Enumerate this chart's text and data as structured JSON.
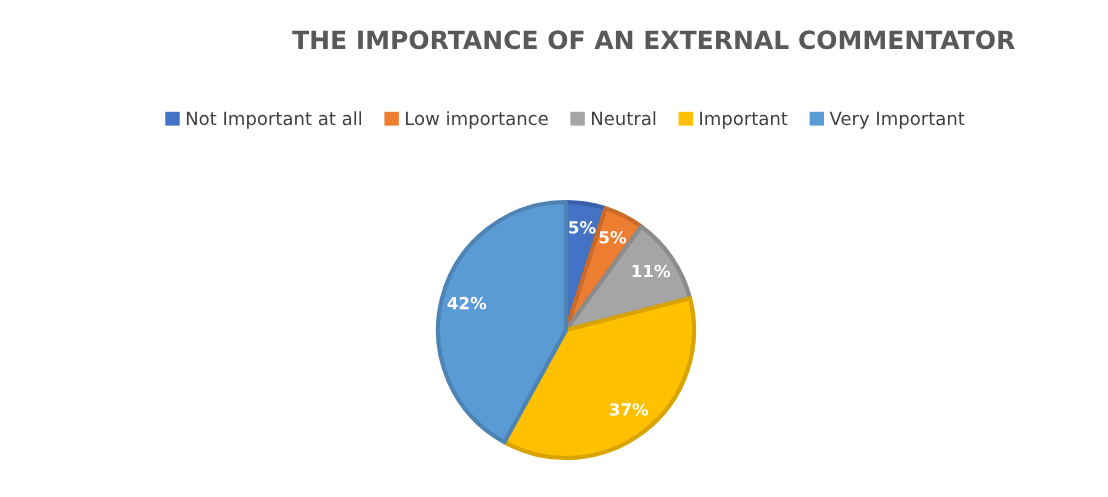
{
  "chart_data": {
    "type": "pie",
    "title": "THE IMPORTANCE OF AN EXTERNAL COMMENTATOR",
    "categories": [
      "Not Important at all",
      "Low importance",
      "Neutral",
      "Important",
      "Very Important"
    ],
    "values": [
      5,
      5,
      11,
      37,
      42
    ],
    "colors": [
      "#4472c4",
      "#ed7d31",
      "#a5a5a5",
      "#ffc000",
      "#5b9bd5"
    ],
    "value_labels": [
      "5%",
      "5%",
      "11%",
      "37%",
      "42%"
    ],
    "legend": "top"
  }
}
